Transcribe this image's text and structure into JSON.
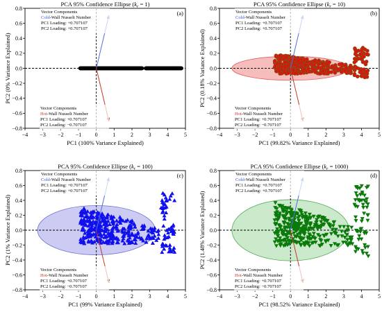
{
  "chart_data": [
    {
      "type": "scatter",
      "panel_label": "(a)",
      "title": "PCA 95% Confidence Ellipse (",
      "title_k": "k",
      "title_k_sub": "r",
      "title_k_val": " = 1)",
      "xlabel": "PC1 (100% Variance Explained)",
      "ylabel": "PC2 (0% Variance Explained)",
      "xlim": [
        -4,
        5
      ],
      "ylim": [
        -0.8,
        0.8
      ],
      "xticks": [
        "−4",
        "−3",
        "−2",
        "−1",
        "0",
        "1",
        "2",
        "3",
        "4",
        "5"
      ],
      "yticks": [
        "−0.8",
        "−0.6",
        "−0.4",
        "−0.2",
        "0.0",
        "0.2",
        "0.4",
        "0.6",
        "0.8"
      ],
      "marker": "circle",
      "color": "#000000",
      "ellipse": null,
      "point_summary": {
        "x_range": [
          -0.9,
          4.8
        ],
        "y": 0.0
      },
      "vectors": [
        {
          "name": "Cold-Wall Nusselt Number",
          "pc1": 0.707107,
          "pc2": 0.707107,
          "color": "#4f6fe0"
        },
        {
          "name": "Hot-Wall Nusselt Number",
          "pc1": 0.707107,
          "pc2": -0.707107,
          "color": "#c0392b"
        }
      ],
      "legend_top": {
        "title": "Vector Components",
        "name_prefix": "Cold",
        "name_rest": "-Wall Nusselt Number",
        "prefix_color": "#3355dd",
        "line1": "PC1 Loading: +0.707107",
        "line2": "PC2 Loading: +0.707107"
      },
      "legend_bottom": {
        "title": "Vector Components",
        "name_prefix": "Hot",
        "name_rest": "-Wall Nusselt Number",
        "prefix_color": "#d0341e",
        "line1": "PC1 Loading: +0.707107",
        "line2": "PC2 Loading: −0.707107"
      }
    },
    {
      "type": "scatter",
      "panel_label": "(b)",
      "title": "PCA 95% Confidence Ellipse (",
      "title_k": "k",
      "title_k_sub": "r",
      "title_k_val": " = 10)",
      "xlabel": "PC1 (99.82% Variance Explained)",
      "ylabel": "PC2 (0.18% Variance Explained)",
      "xlim": [
        -4,
        5
      ],
      "ylim": [
        -0.8,
        0.8
      ],
      "xticks": [
        "−4",
        "−3",
        "−2",
        "−1",
        "0",
        "1",
        "2",
        "3",
        "4",
        "5"
      ],
      "yticks": [
        "−0.8",
        "−0.6",
        "−0.4",
        "−0.2",
        "0.0",
        "0.2",
        "0.4",
        "0.6",
        "0.8"
      ],
      "marker": "circle",
      "color": "#dd1111",
      "edge_color": "#7a5a10",
      "ellipse": {
        "cx": 0.0,
        "cy": 0.0,
        "rx": 3.3,
        "ry": 0.16,
        "fill": "#f4a6a6",
        "stroke": "#e06060"
      },
      "point_summary": {
        "x_range": [
          -0.9,
          4.3
        ],
        "y_range": [
          -0.12,
          0.3
        ]
      },
      "vectors": [
        {
          "name": "Cold-Wall Nusselt Number",
          "pc1": 0.707107,
          "pc2": 0.707107,
          "color": "#4f6fe0"
        },
        {
          "name": "Hot-Wall Nusselt Number",
          "pc1": 0.707107,
          "pc2": -0.707107,
          "color": "#c0392b"
        }
      ],
      "legend_top": {
        "title": "Vector Components",
        "name_prefix": "Cold",
        "name_rest": "-Wall Nusselt Number",
        "prefix_color": "#3355dd",
        "line1": "PC1 Loading: +0.707107",
        "line2": "PC2 Loading: +0.707107"
      },
      "legend_bottom": {
        "title": "Vector Components",
        "name_prefix": "Hot",
        "name_rest": "-Wall Nusselt Number",
        "prefix_color": "#d0341e",
        "line1": "PC1 Loading: +0.707107",
        "line2": "PC2 Loading: −0.707107"
      }
    },
    {
      "type": "scatter",
      "panel_label": "(c)",
      "title": "PCA 95% Confidence Ellipse (",
      "title_k": "k",
      "title_k_sub": "r",
      "title_k_val": " = 100)",
      "xlabel": "PC1 (99% Variance Explained)",
      "ylabel": "PC2 (1% Variance Explained)",
      "xlim": [
        -4,
        5
      ],
      "ylim": [
        -0.8,
        0.8
      ],
      "xticks": [
        "−4",
        "−3",
        "−2",
        "−1",
        "0",
        "1",
        "2",
        "3",
        "4",
        "5"
      ],
      "yticks": [
        "−0.8",
        "−0.6",
        "−0.4",
        "−0.2",
        "0.0",
        "0.2",
        "0.4",
        "0.6",
        "0.8"
      ],
      "marker": "triangle-up",
      "color": "#1010ee",
      "ellipse": {
        "cx": 0.0,
        "cy": 0.0,
        "rx": 3.3,
        "ry": 0.33,
        "fill": "#b9b9f0",
        "stroke": "#7070d0"
      },
      "point_summary": {
        "x_range": [
          -0.9,
          4.5
        ],
        "y_range": [
          -0.3,
          0.5
        ]
      },
      "vectors": [
        {
          "name": "Cold-Wall Nusselt Number",
          "pc1": 0.707107,
          "pc2": 0.707107,
          "color": "#4f6fe0"
        },
        {
          "name": "Hot-Wall Nusselt Number",
          "pc1": 0.707107,
          "pc2": -0.707107,
          "color": "#c0392b"
        }
      ],
      "legend_top": {
        "title": "Vector Components",
        "name_prefix": "Cold",
        "name_rest": "-Wall Nusselt Number",
        "prefix_color": "#3355dd",
        "line1": "PC1 Loading: +0.707107",
        "line2": "PC2 Loading: +0.707107"
      },
      "legend_bottom": {
        "title": "Vector Components",
        "name_prefix": "Hot",
        "name_rest": "-Wall Nusselt Number",
        "prefix_color": "#d0341e",
        "line1": "PC1 Loading: +0.707107",
        "line2": "PC2 Loading: −0.707107"
      }
    },
    {
      "type": "scatter",
      "panel_label": "(d)",
      "title": "PCA 95% Confidence Ellipse (",
      "title_k": "k",
      "title_k_sub": "r",
      "title_k_val": " = 1000)",
      "xlabel": "PC1 (98.52% Variance Explained)",
      "ylabel": "PC2 (1.48% Variance Explained)",
      "xlim": [
        -4,
        5
      ],
      "ylim": [
        -0.8,
        0.8
      ],
      "xticks": [
        "−4",
        "−3",
        "−2",
        "−1",
        "0",
        "1",
        "2",
        "3",
        "4",
        "5"
      ],
      "yticks": [
        "−0.8",
        "−0.6",
        "−0.4",
        "−0.2",
        "0.0",
        "0.2",
        "0.4",
        "0.6",
        "0.8"
      ],
      "marker": "triangle-down",
      "color": "#0a7a0a",
      "ellipse": {
        "cx": 0.0,
        "cy": 0.0,
        "rx": 3.3,
        "ry": 0.41,
        "fill": "#b9e2b9",
        "stroke": "#5aa85a"
      },
      "point_summary": {
        "x_range": [
          -0.9,
          4.5
        ],
        "y_range": [
          -0.35,
          0.6
        ]
      },
      "vectors": [
        {
          "name": "Cold-Wall Nusselt Number",
          "pc1": 0.707107,
          "pc2": 0.707107,
          "color": "#4f6fe0"
        },
        {
          "name": "Hot-Wall Nusselt Number",
          "pc1": 0.707107,
          "pc2": -0.707107,
          "color": "#c0392b"
        }
      ],
      "legend_top": {
        "title": "Vector Components",
        "name_prefix": "Cold",
        "name_rest": "-Wall Nusselt Number",
        "prefix_color": "#3355dd",
        "line1": "PC1 Loading: +0.707107",
        "line2": "PC2 Loading: +0.707107"
      },
      "legend_bottom": {
        "title": "Vector Components",
        "name_prefix": "Hot",
        "name_rest": "-Wall Nusselt Number",
        "prefix_color": "#d0341e",
        "line1": "PC1 Loading: +0.707107",
        "line2": "PC2 Loading: −0.707107"
      }
    }
  ]
}
